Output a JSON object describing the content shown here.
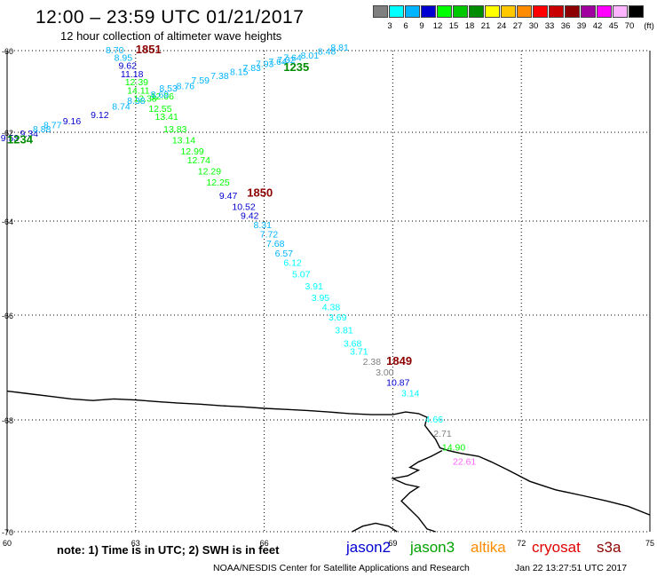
{
  "header": {
    "title": "12:00 – 23:59 UTC 01/21/2017",
    "subtitle": "12 hour collection of altimeter wave heights"
  },
  "legend": {
    "unit": "(ft)",
    "items": [
      {
        "color": "#7f7f7f",
        "label": "3"
      },
      {
        "color": "#00ffff",
        "label": "6"
      },
      {
        "color": "#00b4ff",
        "label": "9"
      },
      {
        "color": "#0000d0",
        "label": "12"
      },
      {
        "color": "#00ff00",
        "label": "15"
      },
      {
        "color": "#00c800",
        "label": "18"
      },
      {
        "color": "#008c00",
        "label": "21"
      },
      {
        "color": "#ffff00",
        "label": "24"
      },
      {
        "color": "#ffc800",
        "label": "27"
      },
      {
        "color": "#ff8c00",
        "label": "30"
      },
      {
        "color": "#ff0000",
        "label": "33"
      },
      {
        "color": "#c80000",
        "label": "36"
      },
      {
        "color": "#8c0000",
        "label": "39"
      },
      {
        "color": "#a000a0",
        "label": "42"
      },
      {
        "color": "#ff00ff",
        "label": "45"
      },
      {
        "color": "#ffb4ff",
        "label": "70"
      },
      {
        "color": "#000000",
        "label": ""
      }
    ]
  },
  "chart_data": {
    "type": "scatter",
    "title": "12:00 – 23:59 UTC 01/21/2017",
    "subtitle": "12 hour collection of altimeter wave heights",
    "xlim": [
      60,
      75
    ],
    "ylim": [
      -70,
      -60
    ],
    "x_ticks": [
      60,
      63,
      66,
      69,
      72,
      75
    ],
    "y_ticks": [
      -60,
      -62,
      -64,
      -66,
      -68,
      -70
    ],
    "x_ticks_on_axis": [
      60,
      75
    ],
    "y_ticks_on_axis": [
      -60,
      -62,
      -64,
      -66,
      -68,
      -70
    ],
    "grid": true,
    "wave_height_values": [
      {
        "x": 62.3,
        "y": -60.07,
        "v": "8.70",
        "c": "#00b4ff"
      },
      {
        "x": 62.5,
        "y": -60.25,
        "v": "8.95",
        "c": "#00b4ff"
      },
      {
        "x": 62.6,
        "y": -60.45,
        "v": "9.62",
        "c": "#0000d0"
      },
      {
        "x": 62.65,
        "y": -60.65,
        "v": "11.18",
        "c": "#0000d0"
      },
      {
        "x": 62.75,
        "y": -60.85,
        "v": "12.39",
        "c": "#00ff00"
      },
      {
        "x": 62.8,
        "y": -61.05,
        "v": "14.11",
        "c": "#00ff00"
      },
      {
        "x": 62.95,
        "y": -61.25,
        "v": "12.38",
        "c": "#00ff00"
      },
      {
        "x": 63.35,
        "y": -61.2,
        "v": "12.06",
        "c": "#00ff00"
      },
      {
        "x": 63.3,
        "y": -61.5,
        "v": "12.55",
        "c": "#00ff00"
      },
      {
        "x": 63.45,
        "y": -61.7,
        "v": "13.41",
        "c": "#00ff00"
      },
      {
        "x": 63.65,
        "y": -62.0,
        "v": "13.83",
        "c": "#00ff00"
      },
      {
        "x": 63.85,
        "y": -62.25,
        "v": "13.14",
        "c": "#00ff00"
      },
      {
        "x": 64.05,
        "y": -62.5,
        "v": "12.99",
        "c": "#00ff00"
      },
      {
        "x": 64.2,
        "y": -62.7,
        "v": "12.74",
        "c": "#00ff00"
      },
      {
        "x": 64.45,
        "y": -62.95,
        "v": "12.29",
        "c": "#00ff00"
      },
      {
        "x": 64.65,
        "y": -63.2,
        "v": "12.25",
        "c": "#00ff00"
      },
      {
        "x": 64.95,
        "y": -63.5,
        "v": "9.47",
        "c": "#0000d0"
      },
      {
        "x": 65.25,
        "y": -63.75,
        "v": "10.52",
        "c": "#0000d0"
      },
      {
        "x": 65.45,
        "y": -63.95,
        "v": "9.42",
        "c": "#0000d0"
      },
      {
        "x": 65.75,
        "y": -64.15,
        "v": "8.31",
        "c": "#00b4ff"
      },
      {
        "x": 65.9,
        "y": -64.35,
        "v": "7.72",
        "c": "#00b4ff"
      },
      {
        "x": 66.05,
        "y": -64.55,
        "v": "7.68",
        "c": "#00b4ff"
      },
      {
        "x": 66.25,
        "y": -64.75,
        "v": "6.57",
        "c": "#00b4ff"
      },
      {
        "x": 66.45,
        "y": -64.95,
        "v": "6.12",
        "c": "#00ffff"
      },
      {
        "x": 66.65,
        "y": -65.2,
        "v": "5.07",
        "c": "#00ffff"
      },
      {
        "x": 66.95,
        "y": -65.45,
        "v": "3.91",
        "c": "#00ffff"
      },
      {
        "x": 67.1,
        "y": -65.7,
        "v": "3.95",
        "c": "#00ffff"
      },
      {
        "x": 67.35,
        "y": -65.9,
        "v": "4.38",
        "c": "#00ffff"
      },
      {
        "x": 67.5,
        "y": -66.1,
        "v": "3.69",
        "c": "#00ffff"
      },
      {
        "x": 67.65,
        "y": -66.35,
        "v": "3.81",
        "c": "#00ffff"
      },
      {
        "x": 67.85,
        "y": -66.6,
        "v": "3.68",
        "c": "#00ffff"
      },
      {
        "x": 68.0,
        "y": -66.75,
        "v": "3.71",
        "c": "#00ffff"
      },
      {
        "x": 68.3,
        "y": -66.95,
        "v": "2.38",
        "c": "#7f7f7f"
      },
      {
        "x": 68.6,
        "y": -67.15,
        "v": "3.00",
        "c": "#7f7f7f"
      },
      {
        "x": 68.85,
        "y": -67.35,
        "v": "10.87",
        "c": "#0000d0"
      },
      {
        "x": 69.2,
        "y": -67.55,
        "v": "3.14",
        "c": "#00ffff"
      },
      {
        "x": 69.75,
        "y": -68.05,
        "v": "4.66",
        "c": "#00ffff"
      },
      {
        "x": 69.95,
        "y": -68.3,
        "v": "2.71",
        "c": "#7f7f7f"
      },
      {
        "x": 70.15,
        "y": -68.55,
        "v": "14.90",
        "c": "#00ff00"
      },
      {
        "x": 70.4,
        "y": -68.8,
        "v": "22.61",
        "c": "#ff66ff"
      },
      {
        "x": 59.85,
        "y": -62.2,
        "v": "9.53",
        "c": "#0000d0"
      },
      {
        "x": 60.3,
        "y": -62.1,
        "v": "9.34",
        "c": "#0000d0"
      },
      {
        "x": 60.6,
        "y": -62.0,
        "v": "8.88",
        "c": "#00b4ff"
      },
      {
        "x": 60.85,
        "y": -61.9,
        "v": "8.77",
        "c": "#00b4ff"
      },
      {
        "x": 61.3,
        "y": -61.8,
        "v": "9.16",
        "c": "#0000d0"
      },
      {
        "x": 61.95,
        "y": -61.65,
        "v": "9.12",
        "c": "#0000d0"
      },
      {
        "x": 62.45,
        "y": -61.45,
        "v": "8.74",
        "c": "#00b4ff"
      },
      {
        "x": 62.8,
        "y": -61.3,
        "v": "8.38",
        "c": "#00b4ff"
      },
      {
        "x": 63.35,
        "y": -61.15,
        "v": "8.69",
        "c": "#00b4ff"
      },
      {
        "x": 63.55,
        "y": -61.0,
        "v": "8.53",
        "c": "#00b4ff"
      },
      {
        "x": 63.95,
        "y": -60.95,
        "v": "8.76",
        "c": "#00b4ff"
      },
      {
        "x": 64.3,
        "y": -60.8,
        "v": "7.59",
        "c": "#00b4ff"
      },
      {
        "x": 64.75,
        "y": -60.7,
        "v": "7.38",
        "c": "#00b4ff"
      },
      {
        "x": 65.2,
        "y": -60.6,
        "v": "8.15",
        "c": "#00b4ff"
      },
      {
        "x": 65.5,
        "y": -60.5,
        "v": "7.83",
        "c": "#00b4ff"
      },
      {
        "x": 65.8,
        "y": -60.4,
        "v": "7.93",
        "c": "#00b4ff"
      },
      {
        "x": 66.1,
        "y": -60.35,
        "v": "7.64",
        "c": "#00b4ff"
      },
      {
        "x": 66.3,
        "y": -60.3,
        "v": "7.32",
        "c": "#00b4ff"
      },
      {
        "x": 66.45,
        "y": -60.25,
        "v": "7.64",
        "c": "#00b4ff"
      },
      {
        "x": 66.85,
        "y": -60.2,
        "v": "8.01",
        "c": "#00b4ff"
      },
      {
        "x": 67.25,
        "y": -60.1,
        "v": "8.48",
        "c": "#00b4ff"
      },
      {
        "x": 67.55,
        "y": -60.0,
        "v": "8.81",
        "c": "#00b4ff"
      }
    ],
    "time_labels": [
      {
        "x": 63.0,
        "y": -60.07,
        "v": "1851",
        "c": "#8c0000"
      },
      {
        "x": 65.6,
        "y": -63.45,
        "v": "1850",
        "c": "#8c0000"
      },
      {
        "x": 68.85,
        "y": -66.95,
        "v": "1849",
        "c": "#8c0000"
      },
      {
        "x": 66.45,
        "y": -60.5,
        "v": "1235",
        "c": "#008c00"
      },
      {
        "x": 60.0,
        "y": -62.25,
        "v": "1234",
        "c": "#008c00"
      }
    ],
    "coastlines": [
      [
        [
          60.0,
          -67.45
        ],
        [
          60.5,
          -67.5
        ],
        [
          61.0,
          -67.55
        ],
        [
          61.5,
          -67.6
        ],
        [
          62.0,
          -67.63
        ],
        [
          62.5,
          -67.6
        ],
        [
          63.0,
          -67.62
        ],
        [
          63.5,
          -67.65
        ],
        [
          64.0,
          -67.68
        ],
        [
          64.5,
          -67.7
        ],
        [
          65.0,
          -67.73
        ],
        [
          65.5,
          -67.75
        ],
        [
          66.0,
          -67.78
        ],
        [
          66.5,
          -67.8
        ],
        [
          67.0,
          -67.82
        ],
        [
          67.5,
          -67.85
        ],
        [
          68.0,
          -67.88
        ],
        [
          68.5,
          -67.9
        ],
        [
          69.0,
          -67.9
        ],
        [
          69.3,
          -67.85
        ],
        [
          69.6,
          -67.88
        ],
        [
          69.8,
          -67.95
        ],
        [
          69.75,
          -68.1
        ],
        [
          69.9,
          -68.25
        ],
        [
          70.0,
          -68.35
        ],
        [
          70.1,
          -68.5
        ],
        [
          70.3,
          -68.55
        ],
        [
          70.6,
          -68.6
        ],
        [
          71.0,
          -68.65
        ],
        [
          71.3,
          -68.75
        ],
        [
          71.7,
          -68.9
        ],
        [
          72.2,
          -69.1
        ],
        [
          72.8,
          -69.25
        ],
        [
          73.4,
          -69.35
        ],
        [
          74.0,
          -69.45
        ],
        [
          74.5,
          -69.55
        ],
        [
          75.0,
          -69.7
        ]
      ],
      [
        [
          70.15,
          -68.55
        ],
        [
          69.9,
          -68.65
        ],
        [
          69.6,
          -68.75
        ],
        [
          69.4,
          -68.85
        ],
        [
          69.6,
          -68.9
        ],
        [
          69.35,
          -69.0
        ],
        [
          69.0,
          -69.05
        ],
        [
          69.3,
          -69.15
        ],
        [
          69.6,
          -69.2
        ],
        [
          69.4,
          -69.3
        ],
        [
          69.2,
          -69.45
        ],
        [
          69.4,
          -69.6
        ],
        [
          69.6,
          -69.75
        ],
        [
          69.8,
          -69.95
        ],
        [
          70.0,
          -70.0
        ]
      ],
      [
        [
          68.05,
          -70.0
        ],
        [
          68.3,
          -69.9
        ],
        [
          68.6,
          -69.85
        ],
        [
          68.9,
          -69.9
        ],
        [
          69.1,
          -70.0
        ]
      ]
    ]
  },
  "notes": {
    "note_text": "note:  1) Time is in UTC;  2) SWH is in feet",
    "satellites": [
      {
        "name": "jason2",
        "color": "#0000d0"
      },
      {
        "name": "jason3",
        "color": "#00a000"
      },
      {
        "name": "altika",
        "color": "#ff8c00"
      },
      {
        "name": "cryosat",
        "color": "#e00000"
      },
      {
        "name": "s3a",
        "color": "#8c0000"
      }
    ]
  },
  "footer": {
    "credit": "NOAA/NESDIS Center for Satellite Applications and Research",
    "timestamp": "Jan 22 13:27:51 UTC 2017"
  }
}
